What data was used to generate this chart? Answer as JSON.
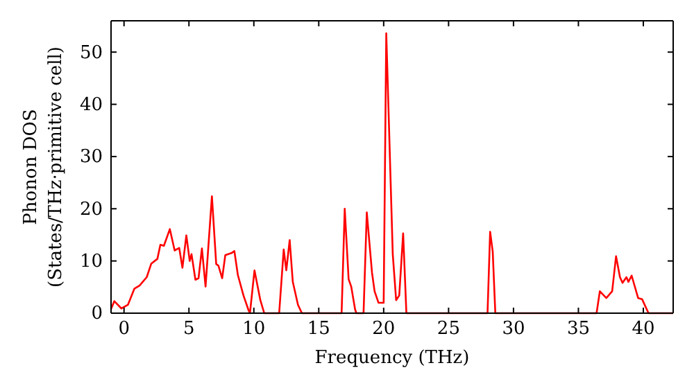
{
  "chart_data": {
    "type": "line",
    "xlabel": "Frequency (THz)",
    "ylabel": "Phonon DOS\n(States/THz·primitive cell)",
    "xlim": [
      -1,
      42.3
    ],
    "ylim": [
      0,
      56
    ],
    "xticks": [
      0,
      5,
      10,
      15,
      20,
      25,
      30,
      35,
      40
    ],
    "yticks": [
      0,
      10,
      20,
      30,
      40,
      50
    ],
    "grid": false,
    "marker": "none",
    "line_style": "solid",
    "series": [
      {
        "color": "#ff0000",
        "x": [
          -1,
          -0.75,
          -0.2,
          0.3,
          0.8,
          1.2,
          1.75,
          2.1,
          2.57,
          2.8,
          3.07,
          3.53,
          3.9,
          4.25,
          4.5,
          4.8,
          5.06,
          5.2,
          5.5,
          5.74,
          6.0,
          6.28,
          6.77,
          7.1,
          7.27,
          7.56,
          7.8,
          8.27,
          8.5,
          8.77,
          9.2,
          9.6,
          9.7,
          10.05,
          10.5,
          10.8,
          11.95,
          12.3,
          12.5,
          12.76,
          13.0,
          13.4,
          13.7,
          16.76,
          17.0,
          17.3,
          17.5,
          17.8,
          17.9,
          18.45,
          18.7,
          19.1,
          19.3,
          19.6,
          20.0,
          20.2,
          20.7,
          20.96,
          21.2,
          21.5,
          21.75,
          28.0,
          28.2,
          28.4,
          28.6,
          36.4,
          36.65,
          37.15,
          37.6,
          37.9,
          38.2,
          38.4,
          38.7,
          38.85,
          39.1,
          39.6,
          39.9,
          40.4,
          42.3
        ],
        "values": [
          0.8,
          2.3,
          0.9,
          1.6,
          4.7,
          5.3,
          6.9,
          9.5,
          10.4,
          13.1,
          12.9,
          16.1,
          12.0,
          12.5,
          8.7,
          14.9,
          10.0,
          11.3,
          6.4,
          6.7,
          12.4,
          5.1,
          22.4,
          9.4,
          9.1,
          6.7,
          11.1,
          11.5,
          11.9,
          7.3,
          3.4,
          0.5,
          0,
          8.2,
          2.5,
          0,
          0,
          12.2,
          8.2,
          14.0,
          6.0,
          1.6,
          0,
          0,
          20.0,
          6.5,
          5.1,
          0.7,
          0,
          0,
          19.3,
          7.8,
          4.2,
          2.0,
          2.0,
          53.6,
          11.3,
          2.5,
          3.4,
          15.3,
          0,
          0,
          15.6,
          11.8,
          0,
          0,
          4.2,
          2.9,
          4.2,
          10.9,
          6.9,
          5.8,
          6.9,
          6.0,
          7.2,
          2.9,
          2.7,
          0,
          0
        ]
      }
    ]
  }
}
